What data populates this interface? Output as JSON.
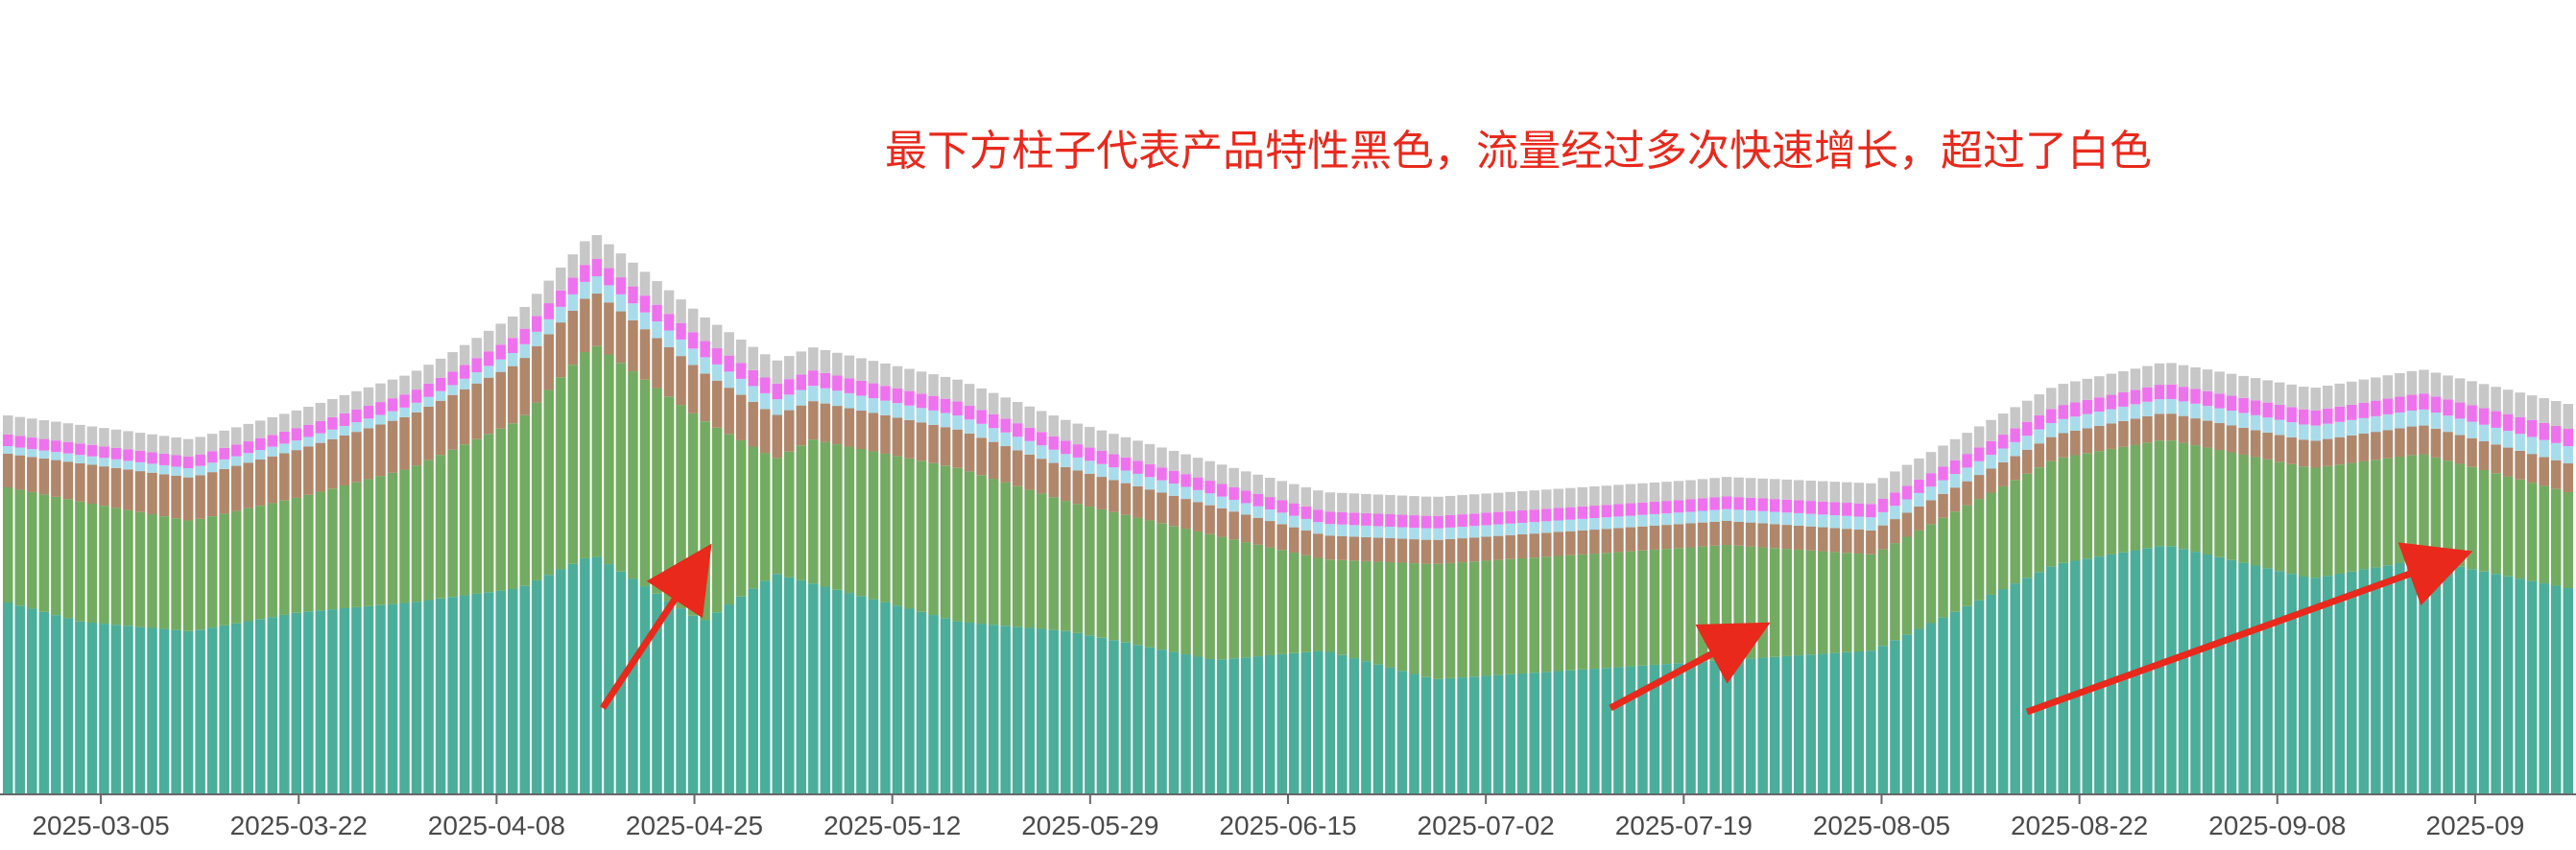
{
  "chart_data": {
    "type": "bar",
    "stacked": true,
    "annotation": "最下方柱子代表产品特性黑色，流量经过多次快速增长，超过了白色",
    "x_tick_labels": [
      "2025-03-05",
      "2025-03-22",
      "2025-04-08",
      "2025-04-25",
      "2025-05-12",
      "2025-05-29",
      "2025-06-15",
      "2025-07-02",
      "2025-07-19",
      "2025-08-05",
      "2025-08-22",
      "2025-09-08",
      "2025-09"
    ],
    "x_range": [
      "2025-02-23",
      "2025-09-25"
    ],
    "grid": false,
    "legend": "none",
    "series_colors": [
      "#4aae9b",
      "#74ab62",
      "#b0876b",
      "#a8dceb",
      "#ee72ee",
      "#c7c7c7"
    ],
    "series_keypoints": [
      {
        "color": "#4aae9b",
        "points": [
          [
            0,
            200
          ],
          [
            10,
            180
          ],
          [
            25,
            170
          ],
          [
            40,
            190
          ],
          [
            55,
            200
          ],
          [
            70,
            215
          ],
          [
            80,
            250
          ],
          [
            95,
            180
          ],
          [
            105,
            230
          ],
          [
            110,
            220
          ],
          [
            130,
            180
          ],
          [
            145,
            170
          ],
          [
            165,
            140
          ],
          [
            180,
            150
          ],
          [
            195,
            120
          ],
          [
            215,
            130
          ],
          [
            235,
            140
          ],
          [
            255,
            150
          ],
          [
            280,
            240
          ],
          [
            295,
            260
          ],
          [
            315,
            225
          ],
          [
            330,
            245
          ],
          [
            350,
            215
          ]
        ]
      },
      {
        "color": "#74ab62",
        "points": [
          [
            0,
            120
          ],
          [
            10,
            125
          ],
          [
            25,
            115
          ],
          [
            40,
            120
          ],
          [
            55,
            140
          ],
          [
            70,
            175
          ],
          [
            80,
            220
          ],
          [
            95,
            210
          ],
          [
            105,
            120
          ],
          [
            110,
            150
          ],
          [
            130,
            160
          ],
          [
            145,
            135
          ],
          [
            165,
            130
          ],
          [
            180,
            95
          ],
          [
            195,
            120
          ],
          [
            215,
            120
          ],
          [
            235,
            120
          ],
          [
            255,
            100
          ],
          [
            280,
            110
          ],
          [
            295,
            110
          ],
          [
            315,
            115
          ],
          [
            330,
            110
          ],
          [
            350,
            100
          ]
        ]
      },
      {
        "color": "#b0876b",
        "points": [
          [
            0,
            35
          ],
          [
            10,
            40
          ],
          [
            25,
            45
          ],
          [
            40,
            50
          ],
          [
            55,
            55
          ],
          [
            70,
            60
          ],
          [
            80,
            55
          ],
          [
            95,
            50
          ],
          [
            105,
            45
          ],
          [
            110,
            40
          ],
          [
            130,
            40
          ],
          [
            145,
            35
          ],
          [
            165,
            30
          ],
          [
            180,
            25
          ],
          [
            195,
            25
          ],
          [
            215,
            25
          ],
          [
            235,
            25
          ],
          [
            255,
            25
          ],
          [
            280,
            25
          ],
          [
            295,
            28
          ],
          [
            315,
            28
          ],
          [
            330,
            30
          ],
          [
            350,
            30
          ]
        ]
      },
      {
        "color": "#a8dceb",
        "points": [
          [
            0,
            8
          ],
          [
            30,
            10
          ],
          [
            60,
            10
          ],
          [
            80,
            18
          ],
          [
            110,
            16
          ],
          [
            140,
            14
          ],
          [
            170,
            12
          ],
          [
            200,
            12
          ],
          [
            230,
            12
          ],
          [
            260,
            14
          ],
          [
            290,
            15
          ],
          [
            320,
            16
          ],
          [
            350,
            18
          ]
        ]
      },
      {
        "color": "#ee72ee",
        "points": [
          [
            0,
            12
          ],
          [
            30,
            12
          ],
          [
            60,
            14
          ],
          [
            80,
            18
          ],
          [
            110,
            16
          ],
          [
            140,
            14
          ],
          [
            170,
            13
          ],
          [
            200,
            13
          ],
          [
            230,
            13
          ],
          [
            260,
            14
          ],
          [
            290,
            15
          ],
          [
            320,
            16
          ],
          [
            350,
            18
          ]
        ]
      },
      {
        "color": "#c7c7c7",
        "points": [
          [
            0,
            20
          ],
          [
            30,
            18
          ],
          [
            60,
            20
          ],
          [
            80,
            25
          ],
          [
            110,
            24
          ],
          [
            140,
            22
          ],
          [
            170,
            20
          ],
          [
            200,
            20
          ],
          [
            230,
            20
          ],
          [
            260,
            22
          ],
          [
            290,
            22
          ],
          [
            320,
            24
          ],
          [
            350,
            26
          ]
        ]
      }
    ]
  }
}
